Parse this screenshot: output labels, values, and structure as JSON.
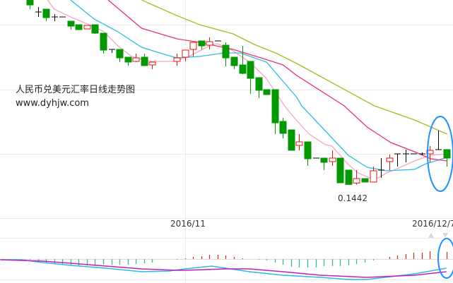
{
  "chart_data": {
    "type": "candlestick",
    "title": "人民币兑美元汇率日线走势图",
    "subtitle": "www.dyhjw.com",
    "annotations": [
      {
        "text": "0.1442",
        "slot": 39,
        "value": 0.1442
      }
    ],
    "x_tick_labels": [
      {
        "text": "2016/11",
        "slot": 19
      },
      {
        "text": "2016/12/7",
        "slot": 51
      }
    ],
    "grid": true,
    "colors": {
      "up": "#ee1111",
      "down": "#009900",
      "flat": "#000000",
      "ma5": "#f4a6bf",
      "ma10": "#29bde0",
      "ma20": "#e8336b",
      "ma60": "#9cbf1f",
      "macd_pos": "#c0392b",
      "macd_neg": "#2fbf8f",
      "dif": "#29bde0",
      "dea": "#c21cc2",
      "highlight": "#1e90ff"
    },
    "candles": [
      {
        "o": 0.15206,
        "h": 0.15206,
        "l": 0.15167,
        "c": 0.15185
      },
      {
        "o": 0.15155,
        "h": 0.15176,
        "l": 0.15134,
        "c": 0.15155
      },
      {
        "o": 0.15167,
        "h": 0.15167,
        "l": 0.15116,
        "c": 0.15131
      },
      {
        "o": 0.15134,
        "h": 0.15146,
        "l": 0.15116,
        "c": 0.15134
      },
      {
        "o": 0.15134,
        "h": 0.15134,
        "l": 0.15134,
        "c": 0.15134
      },
      {
        "o": 0.15116,
        "h": 0.15116,
        "l": 0.1508,
        "c": 0.15095
      },
      {
        "o": 0.15101,
        "h": 0.15101,
        "l": 0.1508,
        "c": 0.1508
      },
      {
        "o": 0.15083,
        "h": 0.15098,
        "l": 0.15083,
        "c": 0.15098
      },
      {
        "o": 0.15101,
        "h": 0.15101,
        "l": 0.15062,
        "c": 0.15065
      },
      {
        "o": 0.15065,
        "h": 0.15065,
        "l": 0.14978,
        "c": 0.14993
      },
      {
        "o": 0.14996,
        "h": 0.14996,
        "l": 0.14981,
        "c": 0.14996
      },
      {
        "o": 0.14996,
        "h": 0.14996,
        "l": 0.14942,
        "c": 0.1496
      },
      {
        "o": 0.14963,
        "h": 0.14963,
        "l": 0.14927,
        "c": 0.14942
      },
      {
        "o": 0.14945,
        "h": 0.14978,
        "l": 0.14942,
        "c": 0.1496
      },
      {
        "o": 0.14963,
        "h": 0.14978,
        "l": 0.14927,
        "c": 0.14927
      },
      {
        "o": 0.1493,
        "h": 0.14942,
        "l": 0.14912,
        "c": 0.14942
      },
      null,
      null,
      {
        "o": 0.14945,
        "h": 0.14978,
        "l": 0.14927,
        "c": 0.1496
      },
      {
        "o": 0.14963,
        "h": 0.14993,
        "l": 0.14945,
        "c": 0.14993
      },
      {
        "o": 0.14996,
        "h": 0.15026,
        "l": 0.14966,
        "c": 0.15026
      },
      {
        "o": 0.15032,
        "h": 0.15032,
        "l": 0.14996,
        "c": 0.15011
      },
      {
        "o": 0.15014,
        "h": 0.15047,
        "l": 0.14996,
        "c": 0.15029
      },
      {
        "o": 0.15032,
        "h": 0.15032,
        "l": 0.15032,
        "c": 0.15032
      },
      {
        "o": 0.15014,
        "h": 0.15026,
        "l": 0.14924,
        "c": 0.1496
      },
      {
        "o": 0.14963,
        "h": 0.14963,
        "l": 0.14912,
        "c": 0.14927
      },
      {
        "o": 0.1493,
        "h": 0.15011,
        "l": 0.14891,
        "c": 0.14894
      },
      {
        "o": 0.14945,
        "h": 0.14945,
        "l": 0.14807,
        "c": 0.14873
      },
      {
        "o": 0.14876,
        "h": 0.14876,
        "l": 0.14789,
        "c": 0.14822
      },
      {
        "o": 0.14825,
        "h": 0.14825,
        "l": 0.14804,
        "c": 0.14804
      },
      {
        "o": 0.14825,
        "h": 0.14825,
        "l": 0.14636,
        "c": 0.14684
      },
      {
        "o": 0.1469,
        "h": 0.14705,
        "l": 0.14618,
        "c": 0.14639
      },
      {
        "o": 0.14654,
        "h": 0.14654,
        "l": 0.14567,
        "c": 0.14567
      },
      {
        "o": 0.14588,
        "h": 0.14636,
        "l": 0.14567,
        "c": 0.14603
      },
      {
        "o": 0.14603,
        "h": 0.14603,
        "l": 0.14501,
        "c": 0.14531
      },
      {
        "o": 0.14534,
        "h": 0.14534,
        "l": 0.14534,
        "c": 0.14534
      },
      {
        "o": 0.14534,
        "h": 0.14534,
        "l": 0.14483,
        "c": 0.14516
      },
      {
        "o": 0.14519,
        "h": 0.14567,
        "l": 0.14501,
        "c": 0.14534
      },
      {
        "o": 0.14534,
        "h": 0.14534,
        "l": 0.14429,
        "c": 0.14429
      },
      {
        "o": 0.14483,
        "h": 0.14483,
        "l": 0.1442,
        "c": 0.14422
      },
      {
        "o": 0.14428,
        "h": 0.14483,
        "l": 0.14421,
        "c": 0.14447
      },
      {
        "o": 0.14447,
        "h": 0.14447,
        "l": 0.14432,
        "c": 0.14432
      },
      {
        "o": 0.14432,
        "h": 0.14498,
        "l": 0.14432,
        "c": 0.1448
      },
      {
        "o": 0.14483,
        "h": 0.14534,
        "l": 0.1445,
        "c": 0.14483
      },
      {
        "o": 0.14519,
        "h": 0.14549,
        "l": 0.14483,
        "c": 0.14534
      },
      {
        "o": 0.14552,
        "h": 0.14552,
        "l": 0.14498,
        "c": 0.14552
      },
      {
        "o": 0.14552,
        "h": 0.1457,
        "l": 0.14516,
        "c": 0.14552
      },
      {
        "o": 0.14552,
        "h": 0.14552,
        "l": 0.14552,
        "c": 0.14552
      },
      {
        "o": 0.14552,
        "h": 0.14558,
        "l": 0.14546,
        "c": 0.14552
      },
      {
        "o": 0.14552,
        "h": 0.14585,
        "l": 0.14516,
        "c": 0.14567
      },
      {
        "o": 0.1457,
        "h": 0.14651,
        "l": 0.1457,
        "c": 0.1457
      },
      {
        "o": 0.1457,
        "h": 0.1457,
        "l": 0.14498,
        "c": 0.14534
      }
    ],
    "moving_averages": {
      "ma5": [
        [
          2.2,
          0.15206
        ],
        [
          3.0,
          0.15167
        ],
        [
          5.0,
          0.15134
        ],
        [
          7.9,
          0.15092
        ],
        [
          9.1,
          0.15071
        ],
        [
          10.8,
          0.15011
        ],
        [
          12.5,
          0.14966
        ],
        [
          14.8,
          0.14945
        ],
        [
          17.7,
          0.14945
        ],
        [
          19.5,
          0.14966
        ],
        [
          22.3,
          0.15017
        ],
        [
          23.0,
          0.1502
        ],
        [
          24.9,
          0.1499
        ],
        [
          26.9,
          0.14942
        ],
        [
          28.9,
          0.14876
        ],
        [
          31.2,
          0.14756
        ],
        [
          32.4,
          0.14705
        ],
        [
          34.2,
          0.14636
        ],
        [
          36.2,
          0.14591
        ],
        [
          37.0,
          0.14585
        ],
        [
          39.0,
          0.14507
        ],
        [
          40.2,
          0.14471
        ],
        [
          42.2,
          0.14441
        ],
        [
          43.7,
          0.14471
        ],
        [
          44.8,
          0.14486
        ],
        [
          47.1,
          0.14522
        ],
        [
          49.1,
          0.14546
        ],
        [
          51.1,
          0.14552
        ]
      ],
      "ma10": [
        [
          5.0,
          0.15206
        ],
        [
          7.9,
          0.15125
        ],
        [
          10.8,
          0.15071
        ],
        [
          13.7,
          0.15005
        ],
        [
          16.5,
          0.14975
        ],
        [
          18.0,
          0.1496
        ],
        [
          20.8,
          0.14966
        ],
        [
          23.8,
          0.14981
        ],
        [
          25.8,
          0.14981
        ],
        [
          29.0,
          0.14942
        ],
        [
          30.1,
          0.14897
        ],
        [
          32.7,
          0.14792
        ],
        [
          33.3,
          0.14756
        ],
        [
          39.0,
          0.14546
        ],
        [
          41.3,
          0.14495
        ],
        [
          43.7,
          0.1448
        ],
        [
          47.1,
          0.14486
        ],
        [
          48.5,
          0.1451
        ],
        [
          51.1,
          0.14537
        ]
      ],
      "ma20": [
        [
          9.6,
          0.15206
        ],
        [
          13.7,
          0.15086
        ],
        [
          18.0,
          0.15041
        ],
        [
          20.8,
          0.15026
        ],
        [
          24.9,
          0.14996
        ],
        [
          28.6,
          0.14957
        ],
        [
          31.0,
          0.1493
        ],
        [
          32.7,
          0.14885
        ],
        [
          38.5,
          0.14756
        ],
        [
          41.3,
          0.14666
        ],
        [
          44.2,
          0.146
        ],
        [
          47.1,
          0.14561
        ],
        [
          49.1,
          0.14531
        ],
        [
          51.1,
          0.14522
        ]
      ],
      "ma60": [
        [
          13.7,
          0.15206
        ],
        [
          18.0,
          0.1514
        ],
        [
          20.8,
          0.15101
        ],
        [
          24.9,
          0.15062
        ],
        [
          27.5,
          0.15017
        ],
        [
          30.1,
          0.14981
        ],
        [
          32.7,
          0.14936
        ],
        [
          42.2,
          0.14756
        ],
        [
          47.1,
          0.14696
        ],
        [
          51.1,
          0.14636
        ]
      ]
    },
    "macd": {
      "histogram": [
        -1,
        -3,
        -5,
        -6,
        -8,
        -9,
        -9,
        -9,
        -9,
        -8,
        -8,
        -8,
        -8,
        -7,
        -6,
        -5,
        null,
        null,
        -1,
        1,
        3,
        4,
        6,
        6,
        5,
        3,
        1,
        0,
        -1,
        -2,
        -5,
        -8,
        -11,
        -12,
        -12,
        -12,
        -10,
        -10,
        -10,
        -9,
        -7,
        -5,
        -2,
        0,
        3,
        5,
        7,
        9,
        9,
        11,
        11,
        10
      ],
      "dif": [
        [
          -3.6,
          -1
        ],
        [
          -1,
          -1
        ],
        [
          1.6,
          -5
        ],
        [
          5,
          -9
        ],
        [
          9.3,
          -13
        ],
        [
          13.7,
          -18
        ],
        [
          17.1,
          -17
        ],
        [
          19,
          -14
        ],
        [
          22.3,
          -10
        ],
        [
          24,
          -13
        ],
        [
          26.9,
          -18
        ],
        [
          31,
          -23
        ],
        [
          35.6,
          -26
        ],
        [
          39,
          -29
        ],
        [
          41.3,
          -29
        ],
        [
          44.2,
          -25
        ],
        [
          47.1,
          -21
        ],
        [
          51,
          -13
        ]
      ],
      "dea": [
        [
          -3.6,
          -1
        ],
        [
          1.6,
          -3
        ],
        [
          5,
          -6
        ],
        [
          9.3,
          -10
        ],
        [
          13.7,
          -14
        ],
        [
          18,
          -16
        ],
        [
          19,
          -16
        ],
        [
          24,
          -14
        ],
        [
          26.9,
          -14
        ],
        [
          31,
          -18
        ],
        [
          35.6,
          -23
        ],
        [
          41.3,
          -26
        ],
        [
          47.1,
          -23
        ],
        [
          51,
          -18
        ]
      ]
    },
    "price_range": [
      0.14283,
      0.15206
    ],
    "highlighted_region": "last 3 sessions circled"
  }
}
